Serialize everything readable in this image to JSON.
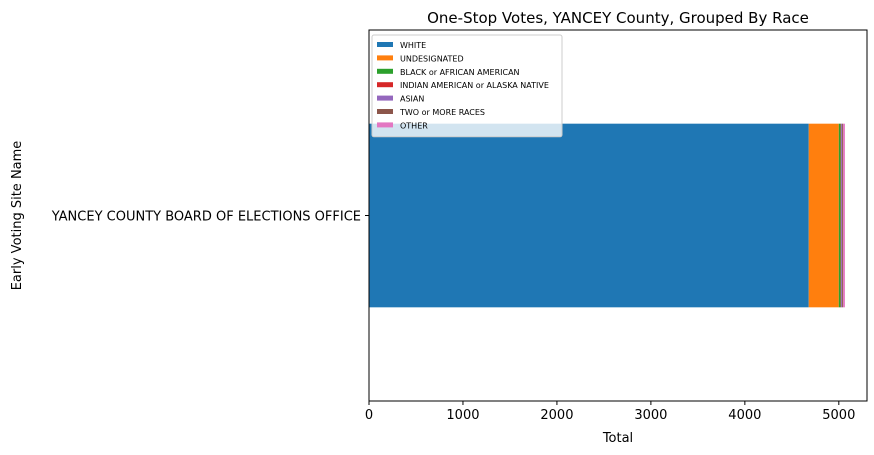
{
  "chart_data": {
    "type": "bar",
    "orientation": "horizontal",
    "stacked": true,
    "title": "One-Stop Votes, YANCEY County, Grouped By Race",
    "xlabel": "Total",
    "ylabel": "Early Voting Site Name",
    "categories": [
      "YANCEY COUNTY BOARD OF ELECTIONS OFFICE"
    ],
    "xlim": [
      0,
      5300
    ],
    "xticks": [
      0,
      1000,
      2000,
      3000,
      4000,
      5000
    ],
    "legend_placement": "upper-left",
    "grid": false,
    "series": [
      {
        "name": "WHITE",
        "values": [
          4680
        ],
        "color": "#1f77b4"
      },
      {
        "name": "UNDESIGNATED",
        "values": [
          320
        ],
        "color": "#ff7f0e"
      },
      {
        "name": "BLACK or AFRICAN AMERICAN",
        "values": [
          20
        ],
        "color": "#2ca02c"
      },
      {
        "name": "INDIAN AMERICAN or ALASKA NATIVE",
        "values": [
          5
        ],
        "color": "#d62728"
      },
      {
        "name": "ASIAN",
        "values": [
          10
        ],
        "color": "#9467bd"
      },
      {
        "name": "TWO or MORE RACES",
        "values": [
          10
        ],
        "color": "#8c564b"
      },
      {
        "name": "OTHER",
        "values": [
          20
        ],
        "color": "#e377c2"
      }
    ]
  }
}
